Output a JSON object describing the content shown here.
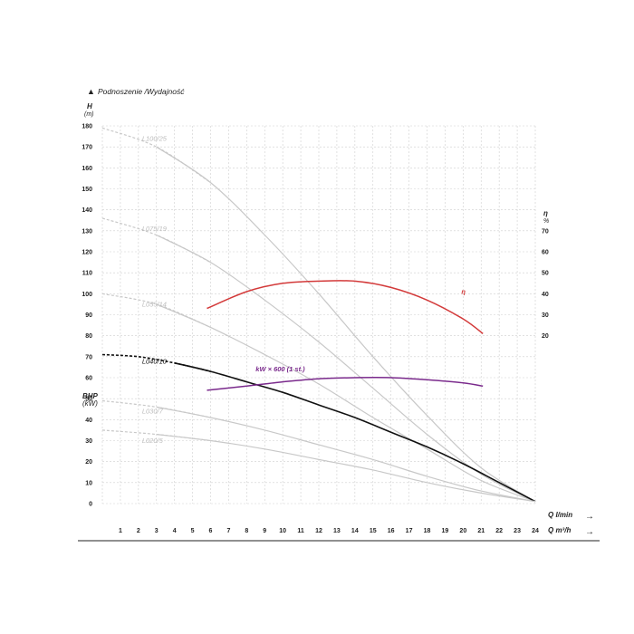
{
  "chart_data": {
    "type": "line",
    "title": "Podnoszenie /Wydajność",
    "yaxis_left": {
      "label": "H",
      "unit": "(m)",
      "range": [
        0,
        180
      ],
      "ticks": [
        0,
        10,
        20,
        30,
        40,
        50,
        60,
        70,
        80,
        90,
        100,
        110,
        120,
        130,
        140,
        150,
        160,
        170,
        180
      ]
    },
    "bhp_label": "BHP",
    "bhp_unit": "(kW)",
    "yaxis_right": {
      "label": "η",
      "unit": "%",
      "ticks": [
        20,
        30,
        40,
        50,
        60,
        70
      ]
    },
    "xaxis": {
      "label_lmin": "Q l/min",
      "label_m3h": "Q m³/h",
      "range": [
        0,
        24
      ],
      "ticks": [
        1,
        2,
        3,
        4,
        5,
        6,
        7,
        8,
        9,
        10,
        11,
        12,
        13,
        14,
        15,
        16,
        17,
        18,
        19,
        20,
        21,
        22,
        23,
        24
      ]
    },
    "grid": true,
    "series": [
      {
        "name": "L100/25",
        "color": "#c8c8c8",
        "label_pos": "upper-left",
        "x": [
          0,
          3,
          6,
          9,
          12,
          15,
          18,
          21,
          24
        ],
        "y": [
          179,
          170,
          153,
          128,
          100,
          70,
          42,
          17,
          1
        ]
      },
      {
        "name": "L075/19",
        "color": "#c8c8c8",
        "label_pos": "upper-left",
        "x": [
          0,
          3,
          6,
          9,
          12,
          15,
          18,
          21,
          24
        ],
        "y": [
          136,
          128,
          115,
          97,
          77,
          55,
          33,
          14,
          1
        ]
      },
      {
        "name": "L055/14",
        "color": "#c8c8c8",
        "label_pos": "upper-left",
        "x": [
          0,
          3,
          6,
          9,
          12,
          15,
          18,
          21,
          24
        ],
        "y": [
          100,
          95,
          84,
          71,
          57,
          41,
          26,
          11,
          1
        ]
      },
      {
        "name": "L040/10",
        "color": "#111111",
        "highlight": true,
        "x": [
          0,
          2,
          4,
          6,
          8,
          10,
          12,
          14,
          16,
          18,
          20,
          22,
          24
        ],
        "y": [
          71,
          70,
          67,
          63,
          58,
          53,
          47,
          41,
          34,
          27,
          19,
          10,
          1
        ]
      },
      {
        "name": "L030/7",
        "color": "#c8c8c8",
        "label_pos": "upper-left",
        "x": [
          0,
          3,
          6,
          9,
          12,
          15,
          18,
          21,
          24
        ],
        "y": [
          49,
          46,
          41,
          35,
          28,
          21,
          13,
          6,
          1
        ]
      },
      {
        "name": "L020/5",
        "color": "#c8c8c8",
        "label_pos": "upper-left",
        "x": [
          0,
          3,
          6,
          9,
          12,
          15,
          18,
          21,
          24
        ],
        "y": [
          35,
          33,
          30,
          26,
          21,
          16,
          10,
          5,
          1
        ]
      },
      {
        "name": "η",
        "color": "#d33a3a",
        "axis": "right",
        "x": [
          5.8,
          8,
          10,
          12,
          14,
          16,
          18,
          20,
          21.1
        ],
        "y": [
          93,
          101,
          105,
          106,
          106,
          103,
          97,
          88,
          81
        ]
      },
      {
        "name": "kW × 600 (1 st.)",
        "color": "#7a2a8c",
        "x": [
          5.8,
          8,
          10,
          12,
          14,
          16,
          18,
          20,
          21.1
        ],
        "y": [
          54,
          56,
          58,
          59.5,
          60,
          60,
          59,
          57.5,
          56
        ]
      }
    ]
  }
}
